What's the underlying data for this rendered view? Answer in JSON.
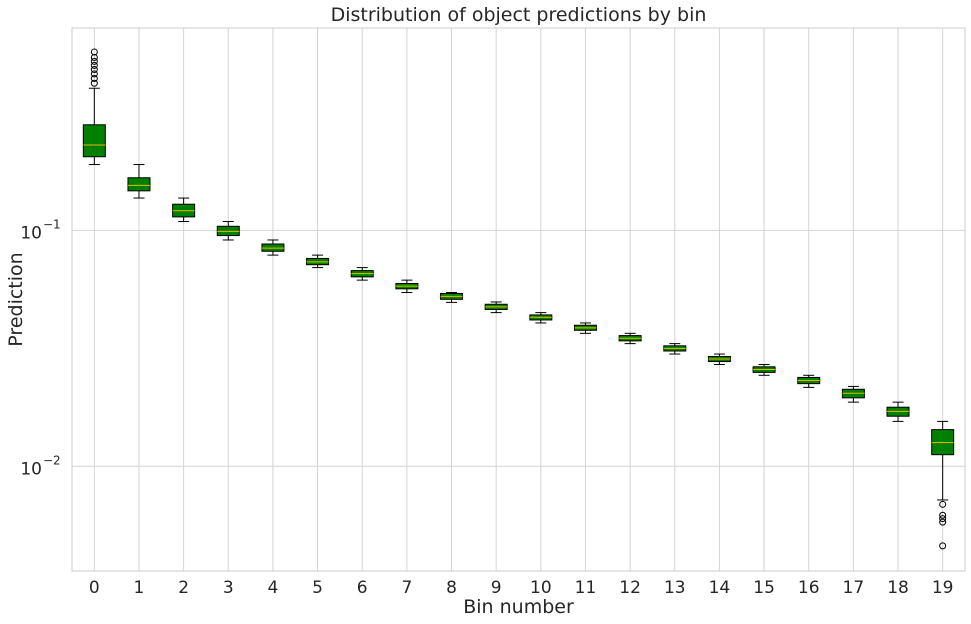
{
  "chart_data": {
    "type": "boxplot",
    "title": "Distribution of object predictions by bin",
    "xlabel": "Bin number",
    "ylabel": "Prediction",
    "yscale": "log",
    "ylim": [
      0.0036,
      0.72
    ],
    "grid": true,
    "box_color": "#008000",
    "median_color": "#e8b800",
    "y_ticks": [
      {
        "value": 0.1,
        "base": "10",
        "exp": "−1"
      },
      {
        "value": 0.01,
        "base": "10",
        "exp": "−2"
      }
    ],
    "categories": [
      "0",
      "1",
      "2",
      "3",
      "4",
      "5",
      "6",
      "7",
      "8",
      "9",
      "10",
      "11",
      "12",
      "13",
      "14",
      "15",
      "16",
      "17",
      "18",
      "19"
    ],
    "boxes": [
      {
        "whislo": 0.19,
        "q1": 0.205,
        "med": 0.23,
        "q3": 0.28,
        "whishi": 0.4,
        "fliers": [
          0.42,
          0.44,
          0.46,
          0.48,
          0.5,
          0.52,
          0.54,
          0.57
        ]
      },
      {
        "whislo": 0.137,
        "q1": 0.147,
        "med": 0.155,
        "q3": 0.167,
        "whishi": 0.19,
        "fliers": []
      },
      {
        "whislo": 0.109,
        "q1": 0.114,
        "med": 0.121,
        "q3": 0.129,
        "whishi": 0.137,
        "fliers": []
      },
      {
        "whislo": 0.091,
        "q1": 0.095,
        "med": 0.099,
        "q3": 0.104,
        "whishi": 0.109,
        "fliers": []
      },
      {
        "whislo": 0.0785,
        "q1": 0.0815,
        "med": 0.084,
        "q3": 0.0875,
        "whishi": 0.091,
        "fliers": []
      },
      {
        "whislo": 0.0695,
        "q1": 0.0715,
        "med": 0.0735,
        "q3": 0.076,
        "whishi": 0.0785,
        "fliers": []
      },
      {
        "whislo": 0.0615,
        "q1": 0.0635,
        "med": 0.0655,
        "q3": 0.0675,
        "whishi": 0.0695,
        "fliers": []
      },
      {
        "whislo": 0.0545,
        "q1": 0.0565,
        "med": 0.058,
        "q3": 0.0595,
        "whishi": 0.0615,
        "fliers": []
      },
      {
        "whislo": 0.0495,
        "q1": 0.051,
        "med": 0.0525,
        "q3": 0.054,
        "whishi": 0.0545,
        "fliers": []
      },
      {
        "whislo": 0.0448,
        "q1": 0.0462,
        "med": 0.0474,
        "q3": 0.0486,
        "whishi": 0.0497,
        "fliers": []
      },
      {
        "whislo": 0.0405,
        "q1": 0.0417,
        "med": 0.0428,
        "q3": 0.0438,
        "whishi": 0.0448,
        "fliers": []
      },
      {
        "whislo": 0.0366,
        "q1": 0.0377,
        "med": 0.0386,
        "q3": 0.0396,
        "whishi": 0.0405,
        "fliers": []
      },
      {
        "whislo": 0.0331,
        "q1": 0.034,
        "med": 0.0349,
        "q3": 0.0358,
        "whishi": 0.0366,
        "fliers": []
      },
      {
        "whislo": 0.0299,
        "q1": 0.0308,
        "med": 0.0316,
        "q3": 0.0324,
        "whishi": 0.0331,
        "fliers": []
      },
      {
        "whislo": 0.027,
        "q1": 0.0278,
        "med": 0.0285,
        "q3": 0.0292,
        "whishi": 0.0299,
        "fliers": []
      },
      {
        "whislo": 0.0243,
        "q1": 0.025,
        "med": 0.0257,
        "q3": 0.0264,
        "whishi": 0.027,
        "fliers": []
      },
      {
        "whislo": 0.0216,
        "q1": 0.0224,
        "med": 0.0231,
        "q3": 0.0238,
        "whishi": 0.0243,
        "fliers": []
      },
      {
        "whislo": 0.0187,
        "q1": 0.0195,
        "med": 0.0204,
        "q3": 0.0212,
        "whishi": 0.0218,
        "fliers": []
      },
      {
        "whislo": 0.0155,
        "q1": 0.0163,
        "med": 0.0171,
        "q3": 0.0178,
        "whishi": 0.0187,
        "fliers": []
      },
      {
        "whislo": 0.0072,
        "q1": 0.0112,
        "med": 0.0126,
        "q3": 0.0143,
        "whishi": 0.0155,
        "fliers": [
          0.0069,
          0.0062,
          0.006,
          0.0058,
          0.0046
        ]
      }
    ]
  }
}
